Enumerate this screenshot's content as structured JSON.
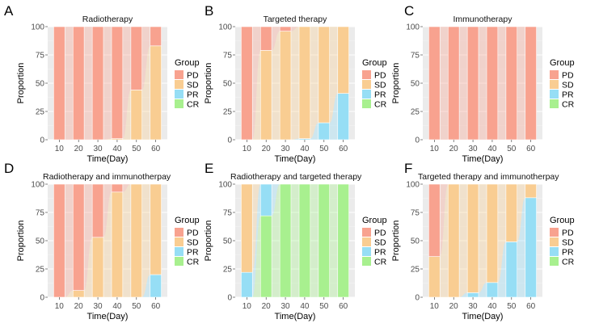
{
  "colors": {
    "PD": "#F8A28F",
    "SD": "#F9CD92",
    "PR": "#96DEF5",
    "CR": "#A8F08F",
    "panel_bg": "#EBEBEB",
    "grid": "#F5F5F5"
  },
  "legend": {
    "title": "Group",
    "entries": [
      "PD",
      "SD",
      "PR",
      "CR"
    ]
  },
  "chart_data": [
    {
      "type": "bar",
      "stacked": true,
      "panel_label": "A",
      "title": "Radiotherapy",
      "xlabel": "Time(Day)",
      "ylabel": "Proportion",
      "categories": [
        "10",
        "20",
        "30",
        "40",
        "50",
        "60"
      ],
      "ylim": [
        0,
        100
      ],
      "yticks": [
        0,
        25,
        50,
        75,
        100
      ],
      "legend": "right",
      "series": [
        {
          "name": "CR",
          "values": [
            0,
            0,
            0,
            0,
            0,
            0
          ]
        },
        {
          "name": "PR",
          "values": [
            0,
            0,
            0,
            0,
            0,
            0
          ]
        },
        {
          "name": "SD",
          "values": [
            0,
            0,
            0,
            1,
            44,
            83
          ]
        },
        {
          "name": "PD",
          "values": [
            100,
            100,
            100,
            99,
            56,
            17
          ]
        }
      ]
    },
    {
      "type": "bar",
      "stacked": true,
      "panel_label": "B",
      "title": "Targeted therapy",
      "xlabel": "Time(Day)",
      "ylabel": "Proportion",
      "categories": [
        "10",
        "20",
        "30",
        "40",
        "50",
        "60"
      ],
      "ylim": [
        0,
        100
      ],
      "yticks": [
        0,
        25,
        50,
        75,
        100
      ],
      "legend": "right",
      "series": [
        {
          "name": "CR",
          "values": [
            0,
            0,
            0,
            0,
            0,
            0
          ]
        },
        {
          "name": "PR",
          "values": [
            0,
            0,
            0,
            1,
            15,
            41
          ]
        },
        {
          "name": "SD",
          "values": [
            0,
            79,
            96,
            99,
            85,
            59
          ]
        },
        {
          "name": "PD",
          "values": [
            100,
            21,
            4,
            0,
            0,
            0
          ]
        }
      ]
    },
    {
      "type": "bar",
      "stacked": true,
      "panel_label": "C",
      "title": "Immunotherapy",
      "xlabel": "Time(Day)",
      "ylabel": "Proportion",
      "categories": [
        "10",
        "20",
        "30",
        "40",
        "50",
        "60"
      ],
      "ylim": [
        0,
        100
      ],
      "yticks": [
        0,
        25,
        50,
        75,
        100
      ],
      "legend": "right",
      "series": [
        {
          "name": "CR",
          "values": [
            0,
            0,
            0,
            0,
            0,
            0
          ]
        },
        {
          "name": "PR",
          "values": [
            0,
            0,
            0,
            0,
            0,
            0
          ]
        },
        {
          "name": "SD",
          "values": [
            0,
            0,
            0,
            0,
            0,
            0
          ]
        },
        {
          "name": "PD",
          "values": [
            100,
            100,
            100,
            100,
            100,
            100
          ]
        }
      ]
    },
    {
      "type": "bar",
      "stacked": true,
      "panel_label": "D",
      "title": "Radiotherapy and immunotherpay",
      "xlabel": "Time(Day)",
      "ylabel": "Proportion",
      "categories": [
        "10",
        "20",
        "30",
        "40",
        "50",
        "60"
      ],
      "ylim": [
        0,
        100
      ],
      "yticks": [
        0,
        25,
        50,
        75,
        100
      ],
      "legend": "right",
      "series": [
        {
          "name": "CR",
          "values": [
            0,
            0,
            0,
            0,
            0,
            0
          ]
        },
        {
          "name": "PR",
          "values": [
            0,
            0,
            0,
            0,
            0,
            20
          ]
        },
        {
          "name": "SD",
          "values": [
            0,
            6,
            53,
            93,
            100,
            80
          ]
        },
        {
          "name": "PD",
          "values": [
            100,
            94,
            47,
            7,
            0,
            0
          ]
        }
      ]
    },
    {
      "type": "bar",
      "stacked": true,
      "panel_label": "E",
      "title": "Radiotherapy and targeted therapy",
      "xlabel": "Time(Day)",
      "ylabel": "Proportion",
      "categories": [
        "10",
        "20",
        "30",
        "40",
        "50",
        "60"
      ],
      "ylim": [
        0,
        100
      ],
      "yticks": [
        0,
        25,
        50,
        75,
        100
      ],
      "legend": "right",
      "series": [
        {
          "name": "CR",
          "values": [
            0,
            72,
            100,
            100,
            100,
            100
          ]
        },
        {
          "name": "PR",
          "values": [
            22,
            28,
            0,
            0,
            0,
            0
          ]
        },
        {
          "name": "SD",
          "values": [
            78,
            0,
            0,
            0,
            0,
            0
          ]
        },
        {
          "name": "PD",
          "values": [
            0,
            0,
            0,
            0,
            0,
            0
          ]
        }
      ]
    },
    {
      "type": "bar",
      "stacked": true,
      "panel_label": "F",
      "title": "Targeted therapy and immunotherpay",
      "xlabel": "Time(Day)",
      "ylabel": "Proportion",
      "categories": [
        "10",
        "20",
        "30",
        "40",
        "50",
        "60"
      ],
      "ylim": [
        0,
        100
      ],
      "yticks": [
        0,
        25,
        50,
        75,
        100
      ],
      "legend": "right",
      "series": [
        {
          "name": "CR",
          "values": [
            0,
            0,
            0,
            0,
            0,
            0
          ]
        },
        {
          "name": "PR",
          "values": [
            0,
            0,
            4,
            13,
            49,
            88
          ]
        },
        {
          "name": "SD",
          "values": [
            36,
            100,
            96,
            87,
            51,
            12
          ]
        },
        {
          "name": "PD",
          "values": [
            64,
            0,
            0,
            0,
            0,
            0
          ]
        }
      ]
    }
  ]
}
